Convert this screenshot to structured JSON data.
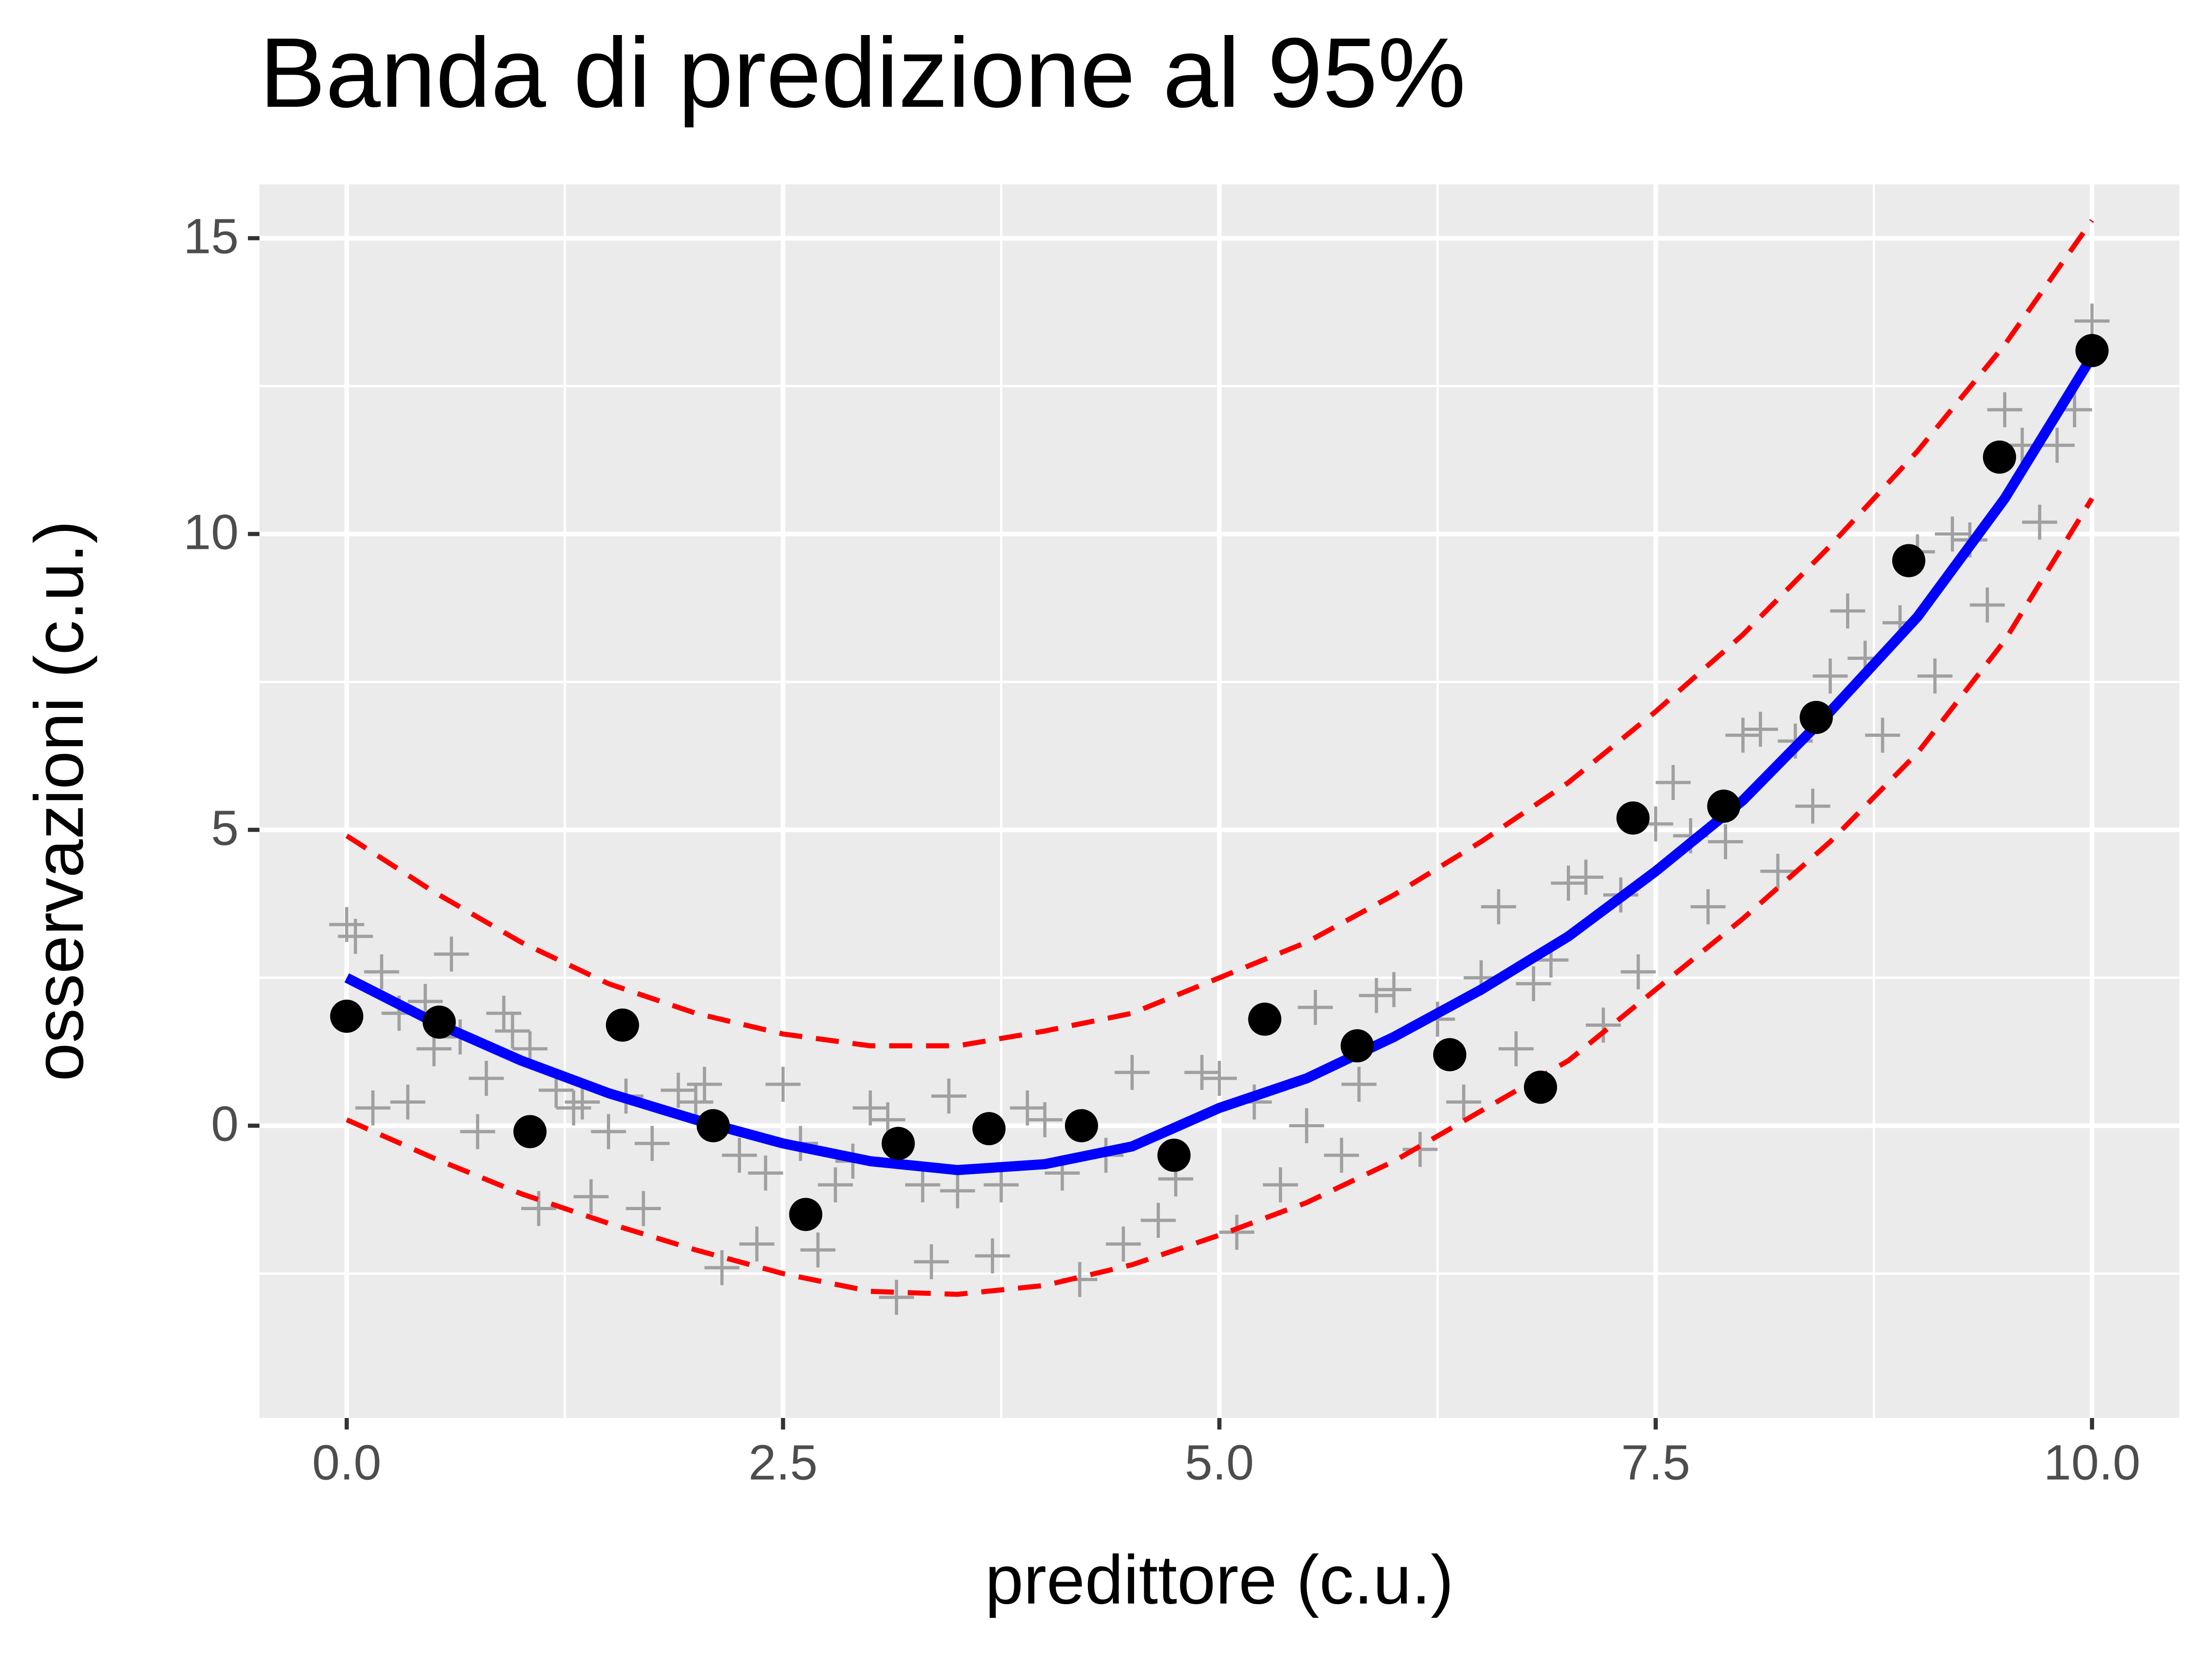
{
  "chart_data": {
    "type": "scatter",
    "title": "Banda di predizione al 95%",
    "x_label": "predittore (c.u.)",
    "y_label": "osservazioni (c.u.)",
    "xlim": [
      -0.5,
      10.5
    ],
    "ylim": [
      -4.94,
      15.91
    ],
    "xticks": [
      {
        "value": 0,
        "label": "0.0"
      },
      2.5,
      {
        "value": 5,
        "label": "5.0"
      },
      7.5,
      {
        "value": 10,
        "label": "10.0"
      }
    ],
    "yticks": [
      0,
      5,
      10,
      15
    ],
    "grid": true,
    "series": [
      {
        "kind": "points",
        "marker": "cross",
        "color": "#a0a0a0",
        "x": [
          0,
          0.05,
          0.15,
          0.2,
          0.3,
          0.35,
          0.45,
          0.5,
          0.6,
          0.65,
          0.75,
          0.8,
          0.9,
          0.95,
          1.05,
          1.1,
          1.2,
          1.3,
          1.35,
          1.4,
          1.5,
          1.6,
          1.7,
          1.75,
          1.9,
          2.0,
          2.05,
          2.15,
          2.25,
          2.35,
          2.4,
          2.5,
          2.6,
          2.7,
          2.8,
          2.9,
          3.0,
          3.1,
          3.15,
          3.3,
          3.35,
          3.45,
          3.5,
          3.7,
          3.75,
          3.9,
          4.0,
          4.1,
          4.2,
          4.35,
          4.45,
          4.5,
          4.65,
          4.75,
          4.9,
          5.0,
          5.1,
          5.2,
          5.35,
          5.5,
          5.55,
          5.7,
          5.8,
          5.9,
          6.0,
          6.15,
          6.25,
          6.4,
          6.5,
          6.6,
          6.7,
          6.8,
          6.9,
          7.0,
          7.1,
          7.2,
          7.3,
          7.4,
          7.5,
          7.6,
          7.7,
          7.8,
          7.9,
          8.0,
          8.1,
          8.2,
          8.3,
          8.4,
          8.5,
          8.6,
          8.7,
          8.8,
          8.9,
          9.0,
          9.1,
          9.2,
          9.3,
          9.4,
          9.5,
          9.6,
          9.7,
          9.8,
          9.9,
          10
        ],
        "values": [
          3.4,
          3.2,
          0.3,
          2.6,
          1.9,
          0.4,
          2.1,
          1.3,
          2.9,
          1.5,
          -0.1,
          0.8,
          1.9,
          1.6,
          1.3,
          -1.4,
          0.6,
          0.3,
          0.4,
          -1.2,
          -0.1,
          0.5,
          -1.4,
          -0.3,
          0.6,
          0.4,
          0.7,
          -2.4,
          -0.5,
          -2.0,
          -0.8,
          0.7,
          -0.3,
          -2.1,
          -1.0,
          -0.6,
          0.3,
          0.1,
          -2.9,
          -1.0,
          -2.3,
          0.5,
          -1.1,
          -2.2,
          -1.0,
          0.3,
          0.1,
          -0.8,
          -2.6,
          -0.5,
          -2.0,
          0.9,
          -1.6,
          -0.9,
          0.9,
          0.8,
          -1.8,
          0.4,
          -1.0,
          0.0,
          2.0,
          -0.5,
          0.7,
          2.2,
          2.3,
          -0.4,
          1.8,
          0.4,
          2.5,
          3.7,
          1.3,
          2.4,
          2.8,
          4.1,
          4.2,
          1.7,
          3.9,
          2.6,
          5.1,
          5.8,
          4.9,
          3.7,
          4.8,
          6.6,
          6.7,
          4.3,
          6.5,
          5.4,
          7.6,
          8.7,
          7.9,
          6.6,
          8.5,
          9.7,
          7.6,
          10.0,
          9.9,
          8.8,
          12.1,
          11.5,
          10.2,
          11.5,
          12.1,
          13.6
        ]
      },
      {
        "kind": "line",
        "style": "solid",
        "color": "#0000ff",
        "x": [
          0,
          0.5,
          1,
          1.5,
          2,
          2.5,
          3,
          3.5,
          4,
          4.5,
          5,
          5.5,
          6,
          6.5,
          7,
          7.5,
          8,
          8.5,
          9,
          9.5,
          10
        ],
        "values": [
          2.5,
          1.75,
          1.1,
          0.55,
          0.1,
          -0.3,
          -0.6,
          -0.75,
          -0.65,
          -0.35,
          0.3,
          0.8,
          1.5,
          2.3,
          3.2,
          4.3,
          5.5,
          7.0,
          8.6,
          10.6,
          13.0
        ]
      },
      {
        "kind": "line",
        "style": "dashed",
        "color": "#ff0000",
        "x": [
          0,
          0.5,
          1,
          1.5,
          2,
          2.5,
          3,
          3.5,
          4,
          4.5,
          5,
          5.5,
          6,
          6.5,
          7,
          7.5,
          8,
          8.5,
          9,
          9.5,
          10
        ],
        "values": [
          4.9,
          3.95,
          3.1,
          2.4,
          1.9,
          1.55,
          1.35,
          1.35,
          1.6,
          1.9,
          2.5,
          3.1,
          3.9,
          4.8,
          5.8,
          7.0,
          8.3,
          9.8,
          11.4,
          13.2,
          15.3
        ]
      },
      {
        "kind": "line",
        "style": "dashed",
        "color": "#ff0000",
        "x": [
          0,
          0.5,
          1,
          1.5,
          2,
          2.5,
          3,
          3.5,
          4,
          4.5,
          5,
          5.5,
          6,
          6.5,
          7,
          7.5,
          8,
          8.5,
          9,
          9.5,
          10
        ],
        "values": [
          0.1,
          -0.55,
          -1.15,
          -1.65,
          -2.1,
          -2.5,
          -2.8,
          -2.85,
          -2.7,
          -2.35,
          -1.85,
          -1.3,
          -0.6,
          0.25,
          1.1,
          2.3,
          3.5,
          4.8,
          6.3,
          8.2,
          10.6
        ]
      },
      {
        "kind": "points",
        "marker": "dot",
        "color": "#000000",
        "x": [
          0,
          0.53,
          1.05,
          1.58,
          2.1,
          2.63,
          3.16,
          3.68,
          4.21,
          4.74,
          5.26,
          5.79,
          6.32,
          6.84,
          7.37,
          7.89,
          8.42,
          8.95,
          9.47,
          10
        ],
        "values": [
          1.85,
          1.75,
          -0.1,
          1.7,
          0,
          -1.5,
          -0.3,
          -0.05,
          0,
          -0.5,
          1.8,
          1.35,
          1.2,
          0.65,
          5.2,
          5.4,
          6.9,
          9.55,
          11.3,
          13.1
        ]
      }
    ]
  }
}
